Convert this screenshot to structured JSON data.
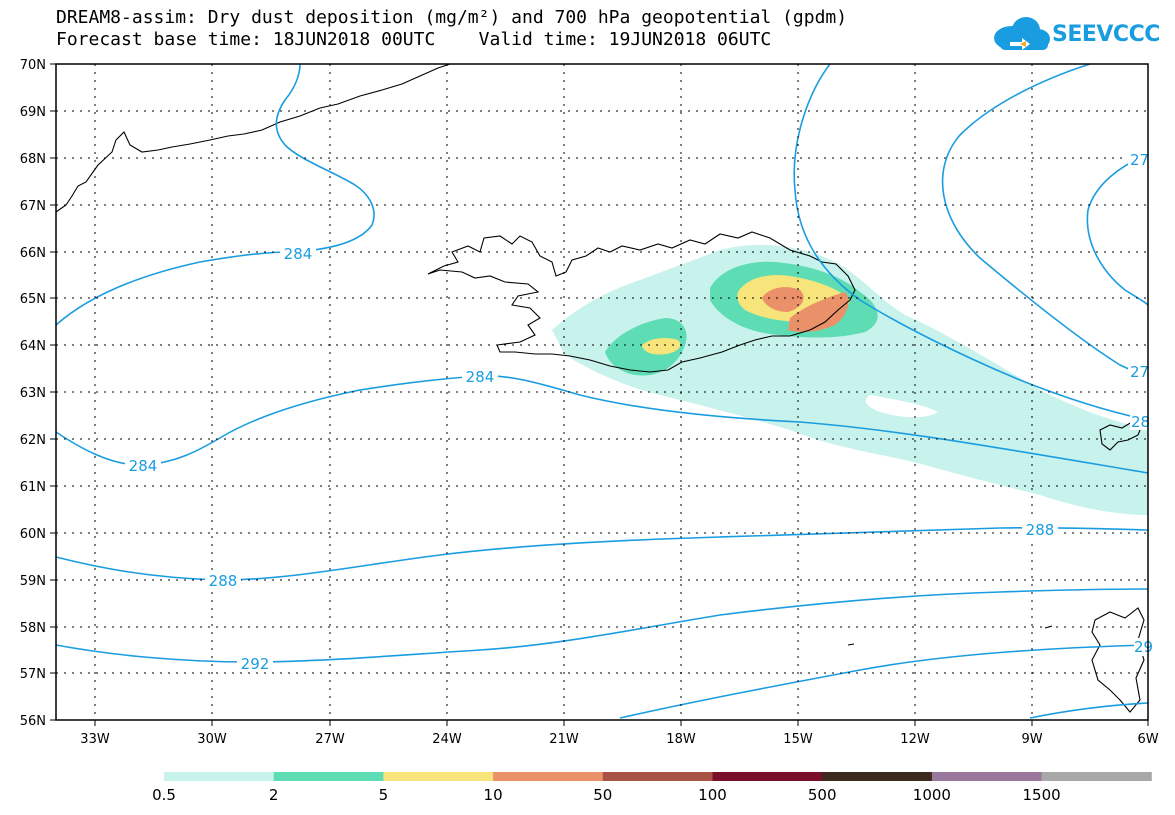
{
  "header": {
    "title_line1": "DREAM8-assim: Dry dust deposition (mg/m²) and 700 hPa geopotential (gpdm)",
    "title_line2": "Forecast base time: 18JUN2018 00UTC    Valid time: 19JUN2018 06UTC"
  },
  "logo": {
    "text": "SEEVCCC",
    "icon": "cloud-logo-icon",
    "color": "#1a9de0"
  },
  "map": {
    "lat_ticks": [
      "70N",
      "69N",
      "68N",
      "67N",
      "66N",
      "65N",
      "64N",
      "63N",
      "62N",
      "61N",
      "60N",
      "59N",
      "58N",
      "57N",
      "56N"
    ],
    "lon_ticks": [
      "33W",
      "30W",
      "27W",
      "24W",
      "21W",
      "18W",
      "15W",
      "12W",
      "9W",
      "6W"
    ],
    "contour_color": "#1a9de0",
    "contour_labels": [
      "284",
      "284",
      "284",
      "288",
      "288",
      "292",
      "27",
      "27",
      "28",
      "29"
    ]
  },
  "legend": {
    "colors": [
      "#c8f2ec",
      "#5edcb4",
      "#f7e47a",
      "#eb9169",
      "#a85346",
      "#7a0f29",
      "#3b2a1d",
      "#9a789e",
      "#a8a8a8"
    ],
    "labels": [
      "0.5",
      "2",
      "5",
      "10",
      "50",
      "100",
      "500",
      "1000",
      "1500"
    ]
  }
}
